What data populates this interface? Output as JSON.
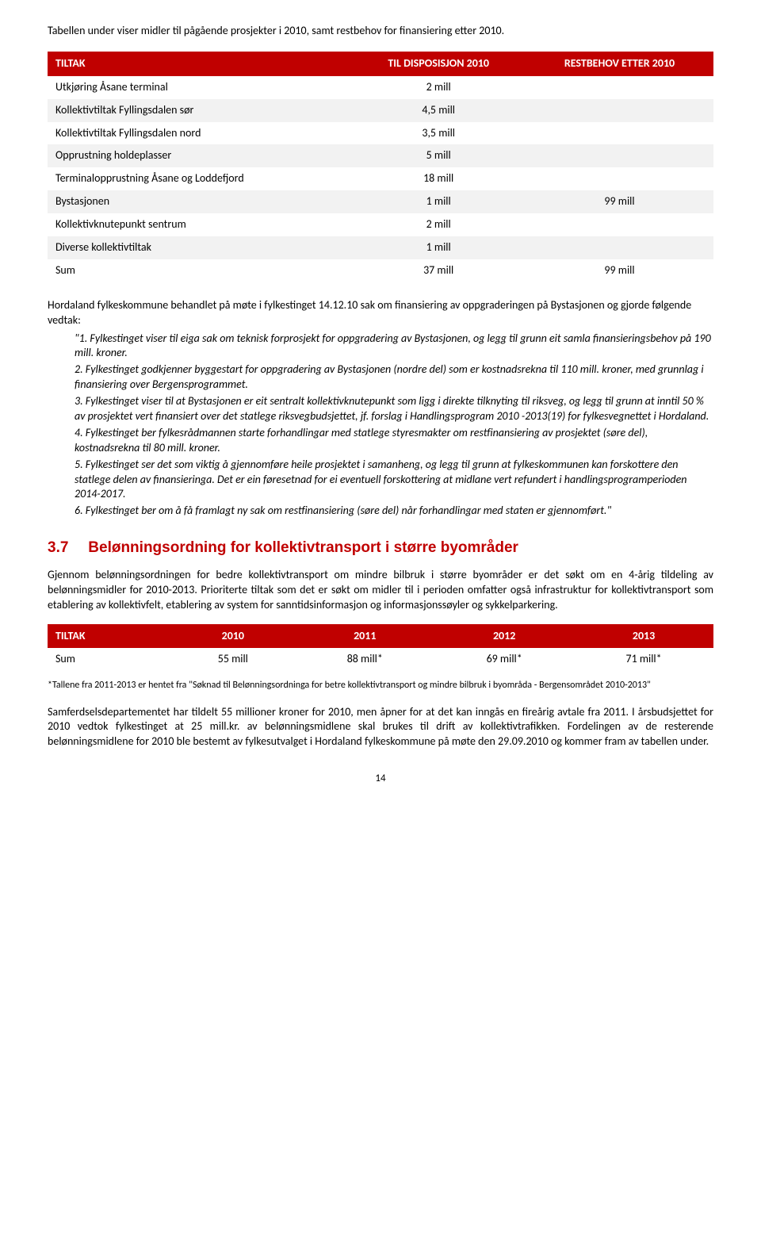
{
  "intro": "Tabellen under viser midler til pågående prosjekter i 2010, samt restbehov for finansiering etter 2010.",
  "table1": {
    "headers": [
      "TILTAK",
      "TIL DISPOSISJON 2010",
      "RESTBEHOV ETTER 2010"
    ],
    "rows": [
      [
        "Utkjøring Åsane terminal",
        "2 mill",
        ""
      ],
      [
        "Kollektivtiltak Fyllingsdalen sør",
        "4,5 mill",
        ""
      ],
      [
        "Kollektivtiltak Fyllingsdalen nord",
        "3,5 mill",
        ""
      ],
      [
        "Opprustning holdeplasser",
        "5 mill",
        ""
      ],
      [
        "Terminalopprustning Åsane og Loddefjord",
        "18 mill",
        ""
      ],
      [
        "Bystasjonen",
        "1 mill",
        "99 mill"
      ],
      [
        "Kollektivknutepunkt sentrum",
        "2 mill",
        ""
      ],
      [
        "Diverse kollektivtiltak",
        "1 mill",
        ""
      ],
      [
        "Sum",
        "37 mill",
        "99 mill"
      ]
    ]
  },
  "body1": "Hordaland fylkeskommune behandlet på møte i fylkestinget 14.12.10 sak om finansiering av oppgraderingen på Bystasjonen og gjorde følgende vedtak:",
  "resolutions": [
    "\"1. Fylkestinget viser til eiga sak om teknisk forprosjekt for oppgradering av Bystasjonen, og legg til grunn eit samla finansieringsbehov på 190 mill. kroner.",
    "2. Fylkestinget godkjenner byggestart for oppgradering av Bystasjonen (nordre del) som er kostnadsrekna til 110 mill. kroner, med grunnlag i finansiering over Bergensprogrammet.",
    "3. Fylkestinget viser til at Bystasjonen er eit sentralt kollektivknutepunkt som ligg i direkte tilknyting til riksveg, og legg til grunn at inntil 50 % av prosjektet vert finansiert over det statlege riksvegbudsjettet, jf. forslag i Handlingsprogram 2010 -2013(19) for fylkesvegnettet i Hordaland.",
    "4. Fylkestinget ber fylkesrådmannen starte forhandlingar med statlege styresmakter om restfinansiering av prosjektet (søre del), kostnadsrekna til 80 mill. kroner.",
    "5. Fylkestinget ser det som viktig å gjennomføre heile prosjektet i samanheng, og legg til grunn at fylkeskommunen kan forskottere den statlege delen av finansieringa. Det er ein føresetnad for ei eventuell forskottering at midlane vert refundert i handlingsprogramperioden 2014-2017.",
    "6. Fylkestinget ber om å få framlagt ny sak om restfinansiering (søre del) når forhandlingar med staten er gjennomført.\""
  ],
  "section": {
    "num": "3.7",
    "title": "Belønningsordning for kollektivtransport i større byområder"
  },
  "body2": "Gjennom belønningsordningen for bedre kollektivtransport om mindre bilbruk i større byområder er det søkt om en 4-årig tildeling av belønningsmidler for 2010-2013. Prioriterte tiltak som det er søkt om midler til i perioden omfatter også infrastruktur for kollektivtransport som etablering av kollektivfelt, etablering av system for sanntidsinformasjon og informasjonssøyler og sykkelparkering.",
  "table2": {
    "headers": [
      "TILTAK",
      "2010",
      "2011",
      "2012",
      "2013"
    ],
    "rows": [
      [
        "Sum",
        "55 mill",
        "88 mill*",
        "69 mill*",
        "71 mill*"
      ]
    ]
  },
  "footnote": "*Tallene fra 2011-2013 er hentet fra \"Søknad til Belønningsordninga for betre kollektivtransport og mindre bilbruk i byområda - Bergensområdet 2010-2013\"",
  "body3": "Samferdselsdepartementet har tildelt 55 millioner kroner for 2010, men åpner for at det kan inngås en fireårig avtale fra 2011. I årsbudsjettet for 2010 vedtok fylkestinget at 25 mill.kr. av belønningsmidlene skal brukes til drift av kollektivtrafikken.  Fordelingen av de resterende belønningsmidlene for 2010 ble bestemt av fylkesutvalget i Hordaland fylkeskommune på møte den 29.09.2010 og kommer fram av tabellen under.",
  "pageNumber": "14"
}
